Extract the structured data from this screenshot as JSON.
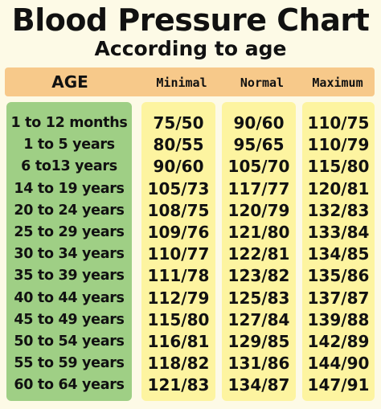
{
  "title": "Blood Pressure Chart",
  "subtitle": "According to age",
  "header": {
    "age": "AGE",
    "minimal": "Minimal",
    "normal": "Normal",
    "maximum": "Maximum"
  },
  "colors": {
    "header": "#f7c98a",
    "age_column": "#9fcf85",
    "value_columns": "#fdf4a0",
    "background": "#fdfae6"
  },
  "rows": [
    {
      "age": "1 to 12 months",
      "min": "75/50",
      "normal": "90/60",
      "max": "110/75"
    },
    {
      "age": "1 to 5 years",
      "min": "80/55",
      "normal": "95/65",
      "max": "110/79"
    },
    {
      "age": "6 to13 years",
      "min": "90/60",
      "normal": "105/70",
      "max": "115/80"
    },
    {
      "age": "14 to 19 years",
      "min": "105/73",
      "normal": "117/77",
      "max": "120/81"
    },
    {
      "age": "20 to 24 years",
      "min": "108/75",
      "normal": "120/79",
      "max": "132/83"
    },
    {
      "age": "25 to 29 years",
      "min": "109/76",
      "normal": "121/80",
      "max": "133/84"
    },
    {
      "age": "30 to 34 years",
      "min": "110/77",
      "normal": "122/81",
      "max": "134/85"
    },
    {
      "age": "35 to 39 years",
      "min": "111/78",
      "normal": "123/82",
      "max": "135/86"
    },
    {
      "age": "40 to 44 years",
      "min": "112/79",
      "normal": "125/83",
      "max": "137/87"
    },
    {
      "age": "45 to 49 years",
      "min": "115/80",
      "normal": "127/84",
      "max": "139/88"
    },
    {
      "age": "50 to 54 years",
      "min": "116/81",
      "normal": "129/85",
      "max": "142/89"
    },
    {
      "age": "55 to 59 years",
      "min": "118/82",
      "normal": "131/86",
      "max": "144/90"
    },
    {
      "age": "60 to 64 years",
      "min": "121/83",
      "normal": "134/87",
      "max": "147/91"
    }
  ]
}
